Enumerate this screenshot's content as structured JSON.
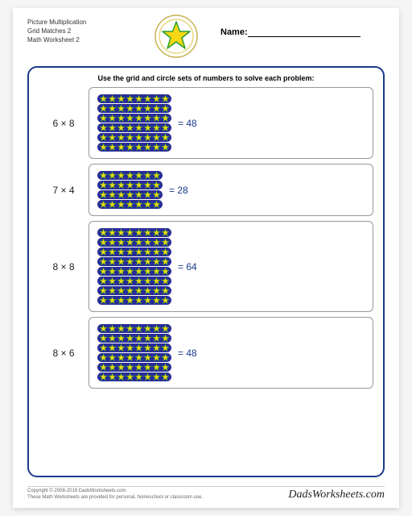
{
  "header": {
    "title_line1": "Picture Multiplication",
    "title_line2": "Grid Matches 2",
    "title_line3": "Math Worksheet 2",
    "name_label": "Name:"
  },
  "instructions": "Use the grid and circle sets of numbers to solve each problem:",
  "star_colors": {
    "fill": "#f5d715",
    "stroke": "#2aa02a",
    "row_bg": "#2a2a9a",
    "badge_circles": [
      "#c8b050",
      "#e8d880"
    ]
  },
  "frame_color": "#1a3a8a",
  "answer_color": "#1a3a8a",
  "problems": [
    {
      "expr": "6 × 8",
      "rows": 6,
      "cols": 8,
      "answer": "= 48"
    },
    {
      "expr": "7 × 4",
      "rows": 4,
      "cols": 7,
      "answer": "= 28"
    },
    {
      "expr": "8 × 8",
      "rows": 8,
      "cols": 8,
      "answer": "= 64"
    },
    {
      "expr": "8 × 6",
      "rows": 6,
      "cols": 8,
      "answer": "= 48"
    }
  ],
  "footer": {
    "copyright": "Copyright © 2008-2019 DadsWorksheets.com",
    "note": "These Math Worksheets are provided for personal, homeschool or classroom use.",
    "brand": "DadsWorksheets.com"
  }
}
